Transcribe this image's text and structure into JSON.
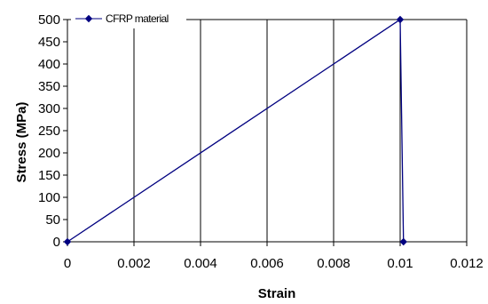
{
  "chart_data": {
    "type": "line",
    "title": "",
    "xlabel": "Strain",
    "ylabel": "Stress (MPa)",
    "xlim": [
      0,
      0.012
    ],
    "ylim": [
      0,
      500
    ],
    "x_ticks": [
      "0",
      "0.002",
      "0.004",
      "0.006",
      "0.008",
      "0.01",
      "0.012"
    ],
    "y_ticks": [
      "0",
      "50",
      "100",
      "150",
      "200",
      "250",
      "300",
      "350",
      "400",
      "450",
      "500"
    ],
    "grid": "vertical",
    "legend_position": "top-left",
    "series": [
      {
        "name": "CFRP material",
        "color": "#000080",
        "marker": "diamond",
        "points": [
          {
            "x": 0,
            "y": 0
          },
          {
            "x": 0.01,
            "y": 500
          },
          {
            "x": 0.0101,
            "y": 0
          }
        ]
      }
    ]
  }
}
